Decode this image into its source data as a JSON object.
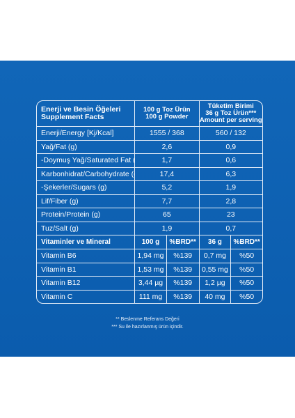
{
  "header": {
    "label_tr": "Enerji ve Besin Öğeleri",
    "label_en": "Supplement Facts",
    "col1_line1": "100 g Toz Ürün",
    "col1_line2": "100 g Powder",
    "col2_line1": "Tüketim Birimi",
    "col2_line2": "36 g Toz Ürün***",
    "col2_line3": "Amount per serving"
  },
  "nutrients": [
    {
      "name": "Enerji/Energy [Kj/Kcal]",
      "per100": "1555 / 368",
      "serving": "560 / 132"
    },
    {
      "name": "Yağ/Fat (g)",
      "per100": "2,6",
      "serving": "0,9"
    },
    {
      "name": "-Doymuş Yağ/Saturated Fat (g)",
      "per100": "1,7",
      "serving": "0,6"
    },
    {
      "name": "Karbonhidrat/Carbohydrate (g)",
      "per100": "17,4",
      "serving": "6,3"
    },
    {
      "name": "-Şekerler/Sugars (g)",
      "per100": "5,2",
      "serving": "1,9"
    },
    {
      "name": "Lif/Fiber (g)",
      "per100": "7,7",
      "serving": "2,8"
    },
    {
      "name": "Protein/Protein (g)",
      "per100": "65",
      "serving": "23"
    },
    {
      "name": "Tuz/Salt (g)",
      "per100": "1,9",
      "serving": "0,7"
    }
  ],
  "vitamin_header": {
    "label": "Vitaminler ve Mineral",
    "col1": "100 g",
    "col2": "%BRD**",
    "col3": "36 g",
    "col4": "%BRD**"
  },
  "vitamins": [
    {
      "name": "Vitamin B6",
      "per100": "1,94 mg",
      "brd100": "%139",
      "serving": "0,7 mg",
      "brdserving": "%50"
    },
    {
      "name": "Vitamin B1",
      "per100": "1,53 mg",
      "brd100": "%139",
      "serving": "0,55 mg",
      "brdserving": "%50"
    },
    {
      "name": "Vitamin B12",
      "per100": "3,44 µg",
      "brd100": "%139",
      "serving": "1,2 µg",
      "brdserving": "%50"
    },
    {
      "name": "Vitamin C",
      "per100": "111 mg",
      "brd100": "%139",
      "serving": "40 mg",
      "brdserving": "%50"
    }
  ],
  "footnotes": {
    "line1": "** Beslenme Referans Değeri",
    "line2": "*** Su ile hazırlanmış ürün içindir."
  },
  "colors": {
    "background": "#0c5fb0",
    "text": "#ffffff",
    "border": "#e6eef8"
  }
}
